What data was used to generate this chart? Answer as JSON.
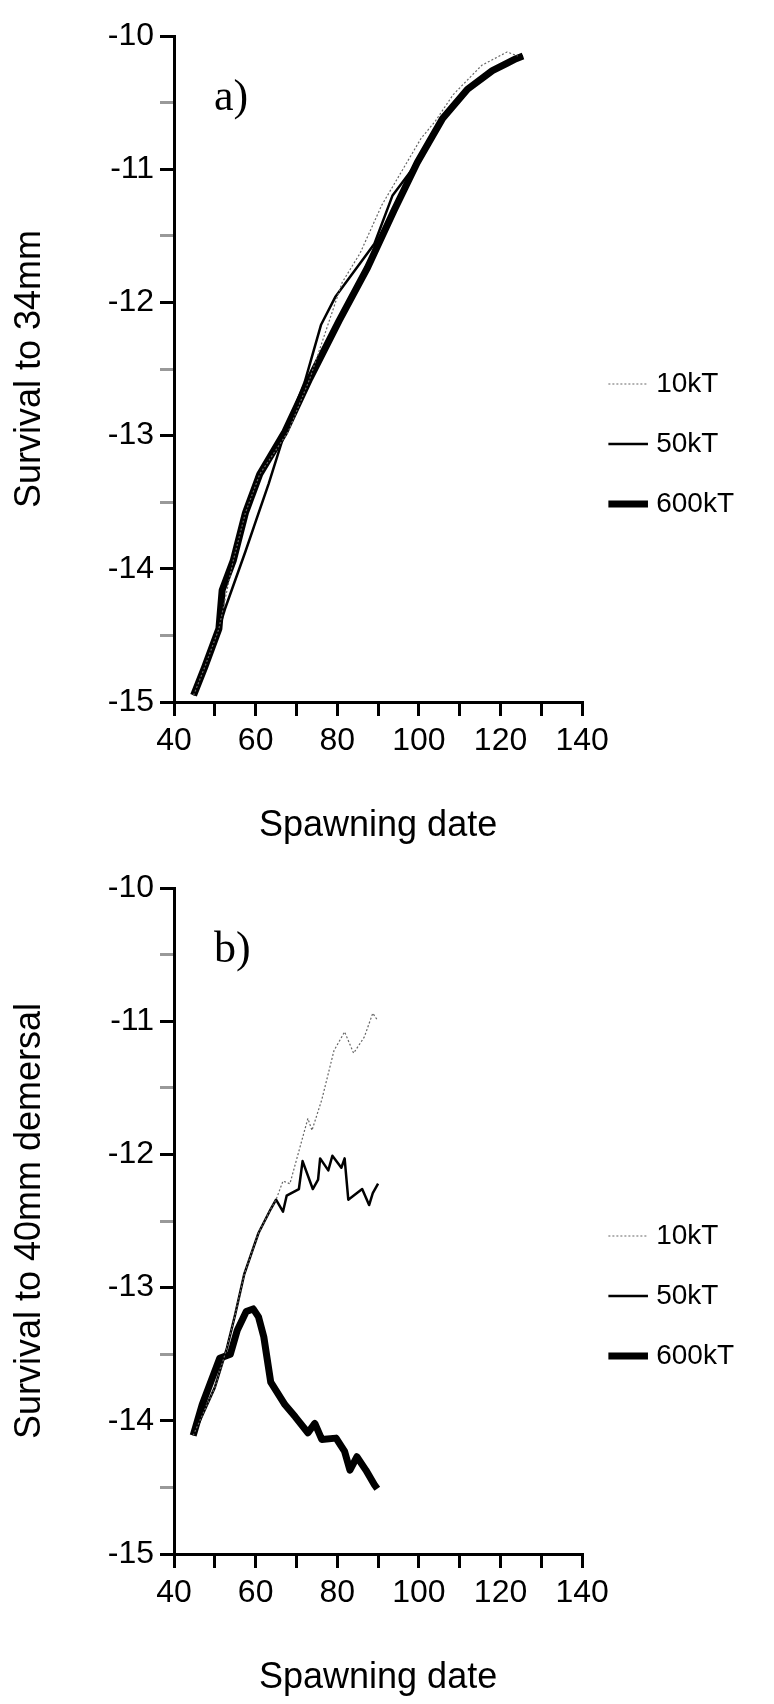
{
  "chart_data": [
    {
      "type": "line",
      "xlabel": "Spawning date",
      "ylabel": "Survival to 34mm",
      "annotations": [
        "a)"
      ],
      "xlim": [
        40,
        140
      ],
      "ylim": [
        -15,
        -10
      ],
      "xticks": [
        40,
        {
          "value": 50,
          "label": null
        },
        60,
        {
          "value": 70,
          "label": null
        },
        80,
        {
          "value": 90,
          "label": null
        },
        100,
        {
          "value": 110,
          "label": null
        },
        120,
        {
          "value": 130,
          "label": null
        },
        140
      ],
      "yticks": [
        -15,
        {
          "value": -14.5,
          "label": null
        },
        -14,
        {
          "value": -13.5,
          "label": null
        },
        -13,
        {
          "value": -12.5,
          "label": null
        },
        -12,
        {
          "value": -11.5,
          "label": null
        },
        -11,
        {
          "value": -10.5,
          "label": null
        },
        -10
      ],
      "grid": false,
      "legend": "right",
      "marker": "none",
      "series": [
        {
          "name": "10kT",
          "color": "#666666",
          "line_style": "dotted",
          "x": [
            44.8,
            47.5,
            51,
            54.5,
            57.5,
            61,
            68,
            73.3,
            81.2,
            85.6,
            90.9,
            100.5,
            104,
            108.4,
            115.4,
            121.6,
            124.2
          ],
          "values": [
            -14.95,
            -14.74,
            -14.45,
            -13.94,
            -13.58,
            -13.29,
            -12.97,
            -12.57,
            -11.85,
            -11.63,
            -11.27,
            -10.77,
            -10.64,
            -10.44,
            -10.22,
            -10.12,
            -10.15
          ]
        },
        {
          "name": "50kT",
          "color": "#000000",
          "line_style": "solid",
          "x": [
            44.8,
            47.5,
            51,
            52.5,
            57.5,
            63.2,
            67.2,
            72,
            76,
            79.5,
            89.1,
            93.5,
            99.6,
            105.8,
            111.9,
            118,
            123.8,
            125.5
          ],
          "values": [
            -14.95,
            -14.74,
            -14.45,
            -14.3,
            -13.87,
            -13.36,
            -12.97,
            -12.6,
            -12.17,
            -11.96,
            -11.56,
            -11.2,
            -10.95,
            -10.62,
            -10.4,
            -10.26,
            -10.17,
            -10.15
          ]
        },
        {
          "name": "600kT",
          "color": "#000000",
          "line_style": "solid",
          "x": [
            44.8,
            47.5,
            51,
            51.8,
            54.5,
            57.5,
            61,
            67.2,
            73.3,
            80.4,
            87.4,
            93.9,
            99.6,
            105.8,
            111.9,
            118,
            123.8,
            125.5
          ],
          "values": [
            -14.95,
            -14.74,
            -14.45,
            -14.16,
            -13.94,
            -13.58,
            -13.29,
            -12.97,
            -12.57,
            -12.14,
            -11.74,
            -11.31,
            -10.95,
            -10.62,
            -10.4,
            -10.26,
            -10.17,
            -10.15
          ]
        }
      ]
    },
    {
      "type": "line",
      "xlabel": "Spawning date",
      "ylabel": "Survival to 40mm demersal",
      "annotations": [
        "b)"
      ],
      "xlim": [
        40,
        140
      ],
      "ylim": [
        -15,
        -10
      ],
      "xticks": [
        40,
        {
          "value": 50,
          "label": null
        },
        60,
        {
          "value": 70,
          "label": null
        },
        80,
        {
          "value": 90,
          "label": null
        },
        100,
        {
          "value": 110,
          "label": null
        },
        120,
        {
          "value": 130,
          "label": null
        },
        140
      ],
      "yticks": [
        -15,
        {
          "value": -14.5,
          "label": null
        },
        -14,
        {
          "value": -13.5,
          "label": null
        },
        -13,
        {
          "value": -12.5,
          "label": null
        },
        -12,
        {
          "value": -11.5,
          "label": null
        },
        -11,
        {
          "value": -10.5,
          "label": null
        },
        -10
      ],
      "grid": false,
      "legend": "right",
      "marker": "none",
      "series": [
        {
          "name": "10kT",
          "color": "#666666",
          "line_style": "dotted",
          "x": [
            44.7,
            50,
            53,
            55,
            57.2,
            60.7,
            63.7,
            65,
            66.7,
            68.4,
            72.8,
            73.8,
            76.2,
            79.2,
            81.8,
            84,
            86.6,
            88.7,
            89.8
          ],
          "values": [
            -14.11,
            -13.75,
            -13.45,
            -13.2,
            -12.9,
            -12.59,
            -12.41,
            -12.34,
            -12.2,
            -12.22,
            -11.73,
            -11.82,
            -11.59,
            -11.22,
            -11.08,
            -11.24,
            -11.12,
            -10.94,
            -10.99
          ]
        },
        {
          "name": "50kT",
          "color": "#000000",
          "line_style": "solid",
          "x": [
            44.7,
            50,
            53,
            55,
            57.2,
            60.7,
            63.7,
            65,
            66.7,
            67.6,
            70.6,
            71.5,
            74,
            75.3,
            75.8,
            77.8,
            78.8,
            81,
            81.8,
            82.7,
            86.1,
            87.8,
            88.7,
            90
          ],
          "values": [
            -14.11,
            -13.75,
            -13.45,
            -13.2,
            -12.9,
            -12.59,
            -12.41,
            -12.34,
            -12.43,
            -12.31,
            -12.26,
            -12.05,
            -12.26,
            -12.19,
            -12.03,
            -12.12,
            -12.01,
            -12.1,
            -12.03,
            -12.34,
            -12.26,
            -12.38,
            -12.29,
            -12.22
          ]
        },
        {
          "name": "600kT",
          "color": "#000000",
          "line_style": "solid",
          "x": [
            44.7,
            46.9,
            51.2,
            53.8,
            55.5,
            57.7,
            59.4,
            60.7,
            62,
            63.7,
            67.2,
            69.7,
            72.8,
            74.5,
            76.2,
            79.7,
            81.8,
            83.1,
            84.8,
            87,
            89.1,
            89.8
          ],
          "values": [
            -14.11,
            -13.88,
            -13.53,
            -13.5,
            -13.32,
            -13.18,
            -13.16,
            -13.22,
            -13.37,
            -13.71,
            -13.88,
            -13.97,
            -14.09,
            -14.02,
            -14.14,
            -14.13,
            -14.23,
            -14.37,
            -14.27,
            -14.37,
            -14.48,
            -14.51
          ]
        }
      ]
    }
  ]
}
